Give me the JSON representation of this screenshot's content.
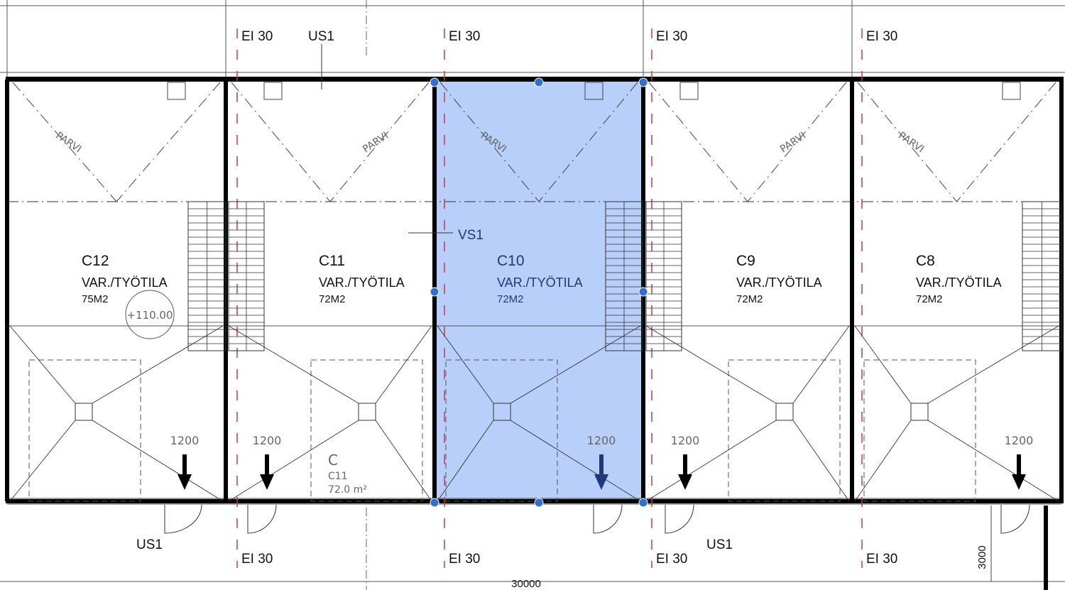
{
  "selection": {
    "unit": "C10",
    "fill": "#b7cff9",
    "handle_color": "#2f6fd0"
  },
  "colors": {
    "fire_line": "#d0344a",
    "wall": "#000000"
  },
  "units": [
    {
      "id": "C12",
      "use": "VAR./TYÖTILA",
      "area": "75M2",
      "parvi": "PARVI",
      "door_load": "1200"
    },
    {
      "id": "C11",
      "use": "VAR./TYÖTILA",
      "area": "72M2",
      "parvi": "PARVI",
      "door_load": "1200"
    },
    {
      "id": "C10",
      "use": "VAR./TYÖTILA",
      "area": "72M2",
      "parvi": "PARVI",
      "door_load": "1200"
    },
    {
      "id": "C9",
      "use": "VAR./TYÖTILA",
      "area": "72M2",
      "parvi": "PARVI",
      "door_load": "1200"
    },
    {
      "id": "C8",
      "use": "VAR./TYÖTILA",
      "area": "72M2",
      "parvi": "PARVI",
      "door_load": "1200"
    }
  ],
  "fire_walls": {
    "label": "EI 30"
  },
  "wall_tags": {
    "top": "US1",
    "bottom_left": "US1",
    "bottom_right": "US1",
    "interior": "VS1"
  },
  "level": "+110.00",
  "room_tag": {
    "letter": "C",
    "name": "C11",
    "area": "72.0  m²"
  },
  "dimensions": {
    "overall": "30000",
    "side": "3000"
  }
}
